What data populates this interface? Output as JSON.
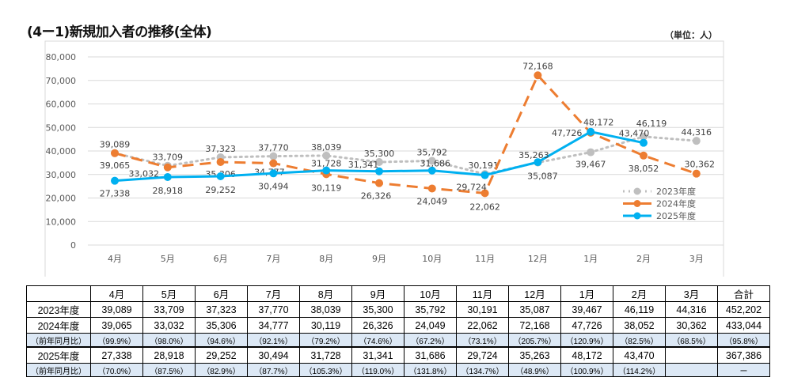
{
  "title": "(4ー1)新規加入者の推移(全体)",
  "unit": "（単位：人）",
  "chart_data": {
    "type": "line",
    "categories": [
      "4月",
      "5月",
      "6月",
      "7月",
      "8月",
      "9月",
      "10月",
      "11月",
      "12月",
      "1月",
      "2月",
      "3月"
    ],
    "ylim": [
      0,
      80000
    ],
    "yticks": [
      "0",
      "10,000",
      "20,000",
      "30,000",
      "40,000",
      "50,000",
      "60,000",
      "70,000",
      "80,000"
    ],
    "grid": true,
    "legend": "bottom-right",
    "series": [
      {
        "name": "2023年度",
        "color": "#bfbfbf",
        "style": "dotted",
        "values": [
          39089,
          33709,
          37323,
          37770,
          38039,
          35300,
          35792,
          30191,
          35087,
          39467,
          46119,
          44316
        ],
        "labels": [
          "39,089",
          "33,709",
          "37,323",
          "37,770",
          "38,039",
          "35,300",
          "35,792",
          "30,191",
          "35,087",
          "39,467",
          "46,119",
          "44,316"
        ]
      },
      {
        "name": "2024年度",
        "color": "#ed7d31",
        "style": "dashed",
        "values": [
          39065,
          33032,
          35306,
          34777,
          30119,
          26326,
          24049,
          22062,
          72168,
          47726,
          38052,
          30362
        ],
        "labels": [
          "39,065",
          "33,032",
          "35,306",
          "34,777",
          "30,119",
          "26,326",
          "24,049",
          "22,062",
          "72,168",
          "47,726",
          "38,052",
          "30,362"
        ]
      },
      {
        "name": "2025年度",
        "color": "#00b0f0",
        "style": "solid",
        "values": [
          27338,
          28918,
          29252,
          30494,
          31728,
          31341,
          31686,
          29724,
          35263,
          48172,
          43470,
          null
        ],
        "labels": [
          "27,338",
          "28,918",
          "29,252",
          "30,494",
          "31,728",
          "31,341",
          "31,686",
          "29,724",
          "35,263",
          "48,172",
          "43,470",
          ""
        ]
      }
    ]
  },
  "table": {
    "header": [
      "",
      "4月",
      "5月",
      "6月",
      "7月",
      "8月",
      "9月",
      "10月",
      "11月",
      "12月",
      "1月",
      "2月",
      "3月",
      "合計"
    ],
    "rows": [
      {
        "type": "data",
        "cells": [
          "2023年度",
          "39,089",
          "33,709",
          "37,323",
          "37,770",
          "38,039",
          "35,300",
          "35,792",
          "30,191",
          "35,087",
          "39,467",
          "46,119",
          "44,316",
          "452,202"
        ]
      },
      {
        "type": "data",
        "cells": [
          "2024年度",
          "39,065",
          "33,032",
          "35,306",
          "34,777",
          "30,119",
          "26,326",
          "24,049",
          "22,062",
          "72,168",
          "47,726",
          "38,052",
          "30,362",
          "433,044"
        ]
      },
      {
        "type": "ratio",
        "cells": [
          "（前年同月比）",
          "（99.9%）",
          "（98.0%）",
          "（94.6%）",
          "（92.1%）",
          "（79.2%）",
          "（74.6%）",
          "（67.2%）",
          "（73.1%）",
          "（205.7%）",
          "（120.9%）",
          "（82.5%）",
          "（68.5%）",
          "（95.8%）"
        ]
      },
      {
        "type": "data",
        "cells": [
          "2025年度",
          "27,338",
          "28,918",
          "29,252",
          "30,494",
          "31,728",
          "31,341",
          "31,686",
          "29,724",
          "35,263",
          "48,172",
          "43,470",
          "",
          "367,386"
        ]
      },
      {
        "type": "ratio",
        "cells": [
          "（前年同月比）",
          "（70.0%）",
          "（87.5%）",
          "（82.9%）",
          "（87.7%）",
          "（105.3%）",
          "（119.0%）",
          "（131.8%）",
          "（134.7%）",
          "（48.9%）",
          "（100.9%）",
          "（114.2%）",
          "",
          "ー"
        ]
      }
    ]
  }
}
